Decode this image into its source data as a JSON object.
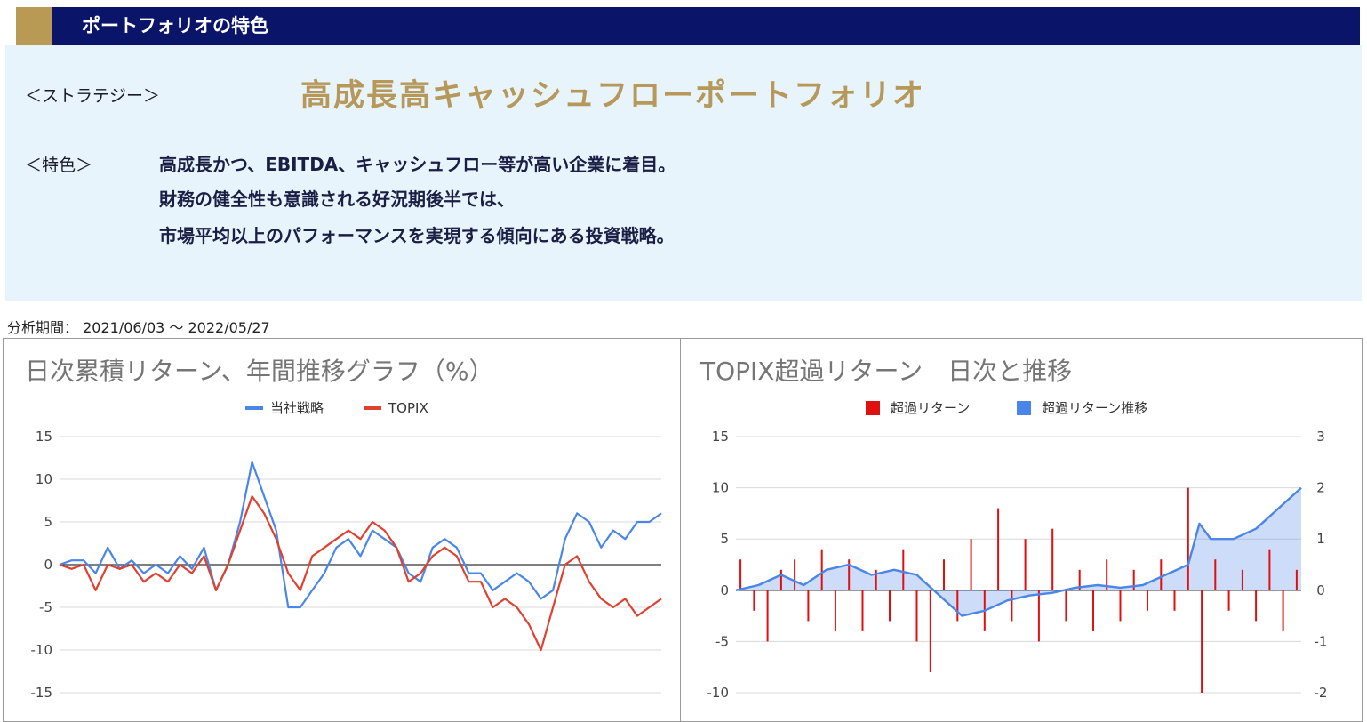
{
  "header": {
    "title": "ポートフォリオの特色"
  },
  "strategy": {
    "label": "＜ストラテジー＞",
    "name": "高成長高キャッシュフローポートフォリオ"
  },
  "features": {
    "label": "＜特色＞",
    "lines": [
      "高成長かつ、EBITDA、キャッシュフロー等が高い企業に着目。",
      "財務の健全性も意識される好況期後半では、",
      "市場平均以上のパフォーマンスを実現する傾向にある投資戦略。"
    ]
  },
  "period": "分析期間： 2021/06/03 ～ 2022/05/27",
  "colors": {
    "strategy": "#4a86e8",
    "topix": "#e04030",
    "excess_bar": "#e01010",
    "excess_line": "#4a86e8",
    "header_bg": "#0a1468",
    "gold": "#b89a55"
  },
  "chart_data": [
    {
      "type": "line",
      "title": "日次累積リターン、年間推移グラフ（%）",
      "ylim": [
        -15,
        15
      ],
      "yticks": [
        15,
        10,
        5,
        0,
        -5,
        -10,
        -15
      ],
      "grid": true,
      "legend": "top-center",
      "x": [
        0,
        5,
        10,
        15,
        20,
        25,
        30,
        35,
        40,
        45,
        50,
        55,
        60,
        65,
        70,
        75,
        80,
        85,
        90,
        95,
        100,
        105,
        110,
        115,
        120,
        125,
        130,
        135,
        140,
        145,
        150,
        155,
        160,
        165,
        170,
        175,
        180,
        185,
        190,
        195,
        200,
        205,
        210,
        215,
        220,
        225,
        230,
        235,
        240,
        245,
        250
      ],
      "series": [
        {
          "name": "当社戦略",
          "values": [
            0,
            0.5,
            0.5,
            -1,
            2,
            -0.5,
            0.5,
            -1,
            0,
            -1,
            1,
            -0.5,
            2,
            -3,
            0,
            5,
            12,
            8,
            4,
            -5,
            -5,
            -3,
            -1,
            2,
            3,
            1,
            4,
            3,
            2,
            -1,
            -2,
            2,
            3,
            2,
            -1,
            -1,
            -3,
            -2,
            -1,
            -2,
            -4,
            -3,
            3,
            6,
            5,
            2,
            4,
            3,
            5,
            5,
            6
          ]
        },
        {
          "name": "TOPIX",
          "values": [
            0,
            -0.5,
            0,
            -3,
            0,
            -0.5,
            0,
            -2,
            -1,
            -2,
            0,
            -1,
            1,
            -3,
            0,
            4,
            8,
            6,
            3,
            -1,
            -3,
            1,
            2,
            3,
            4,
            3,
            5,
            4,
            2,
            -2,
            -1,
            1,
            2,
            1,
            -2,
            -2,
            -5,
            -4,
            -5,
            -7,
            -10,
            -5,
            0,
            1,
            -2,
            -4,
            -5,
            -4,
            -6,
            -5,
            -4
          ]
        }
      ]
    },
    {
      "type": "bar",
      "title": "TOPIX超過リターン　日次と推移",
      "ylim": [
        -10,
        15
      ],
      "yticks": [
        15,
        10,
        5,
        0,
        -5,
        -10
      ],
      "y2lim": [
        -2,
        3
      ],
      "y2ticks": [
        3,
        2,
        1,
        0,
        -1,
        -2
      ],
      "grid": true,
      "legend": "top-center",
      "series": [
        {
          "name": "超過リターン",
          "axis": "left",
          "x": [
            2,
            8,
            14,
            20,
            26,
            32,
            38,
            44,
            50,
            56,
            62,
            68,
            74,
            80,
            86,
            92,
            98,
            104,
            110,
            116,
            122,
            128,
            134,
            140,
            146,
            152,
            158,
            164,
            170,
            176,
            182,
            188,
            194,
            200,
            206,
            212,
            218,
            224,
            230,
            236,
            242,
            248
          ],
          "values": [
            3,
            -2,
            -5,
            2,
            3,
            -3,
            4,
            -4,
            3,
            -4,
            2,
            -3,
            4,
            -5,
            -8,
            3,
            -3,
            5,
            -4,
            8,
            -3,
            5,
            -5,
            6,
            -3,
            2,
            -4,
            3,
            -3,
            2,
            -2,
            3,
            -2,
            10,
            -10,
            3,
            -2,
            2,
            -3,
            4,
            -4,
            2
          ]
        },
        {
          "name": "超過リターン推移",
          "axis": "right",
          "area": true,
          "x": [
            0,
            10,
            20,
            30,
            40,
            50,
            60,
            70,
            80,
            90,
            100,
            110,
            120,
            130,
            140,
            150,
            160,
            170,
            180,
            190,
            200,
            205,
            210,
            220,
            230,
            240,
            250
          ],
          "values": [
            0,
            0.1,
            0.3,
            0.1,
            0.4,
            0.5,
            0.3,
            0.4,
            0.3,
            -0.1,
            -0.5,
            -0.4,
            -0.2,
            -0.1,
            -0.05,
            0.05,
            0.1,
            0.05,
            0.1,
            0.3,
            0.5,
            1.3,
            1.0,
            1.0,
            1.2,
            1.6,
            2.0
          ]
        }
      ]
    }
  ]
}
